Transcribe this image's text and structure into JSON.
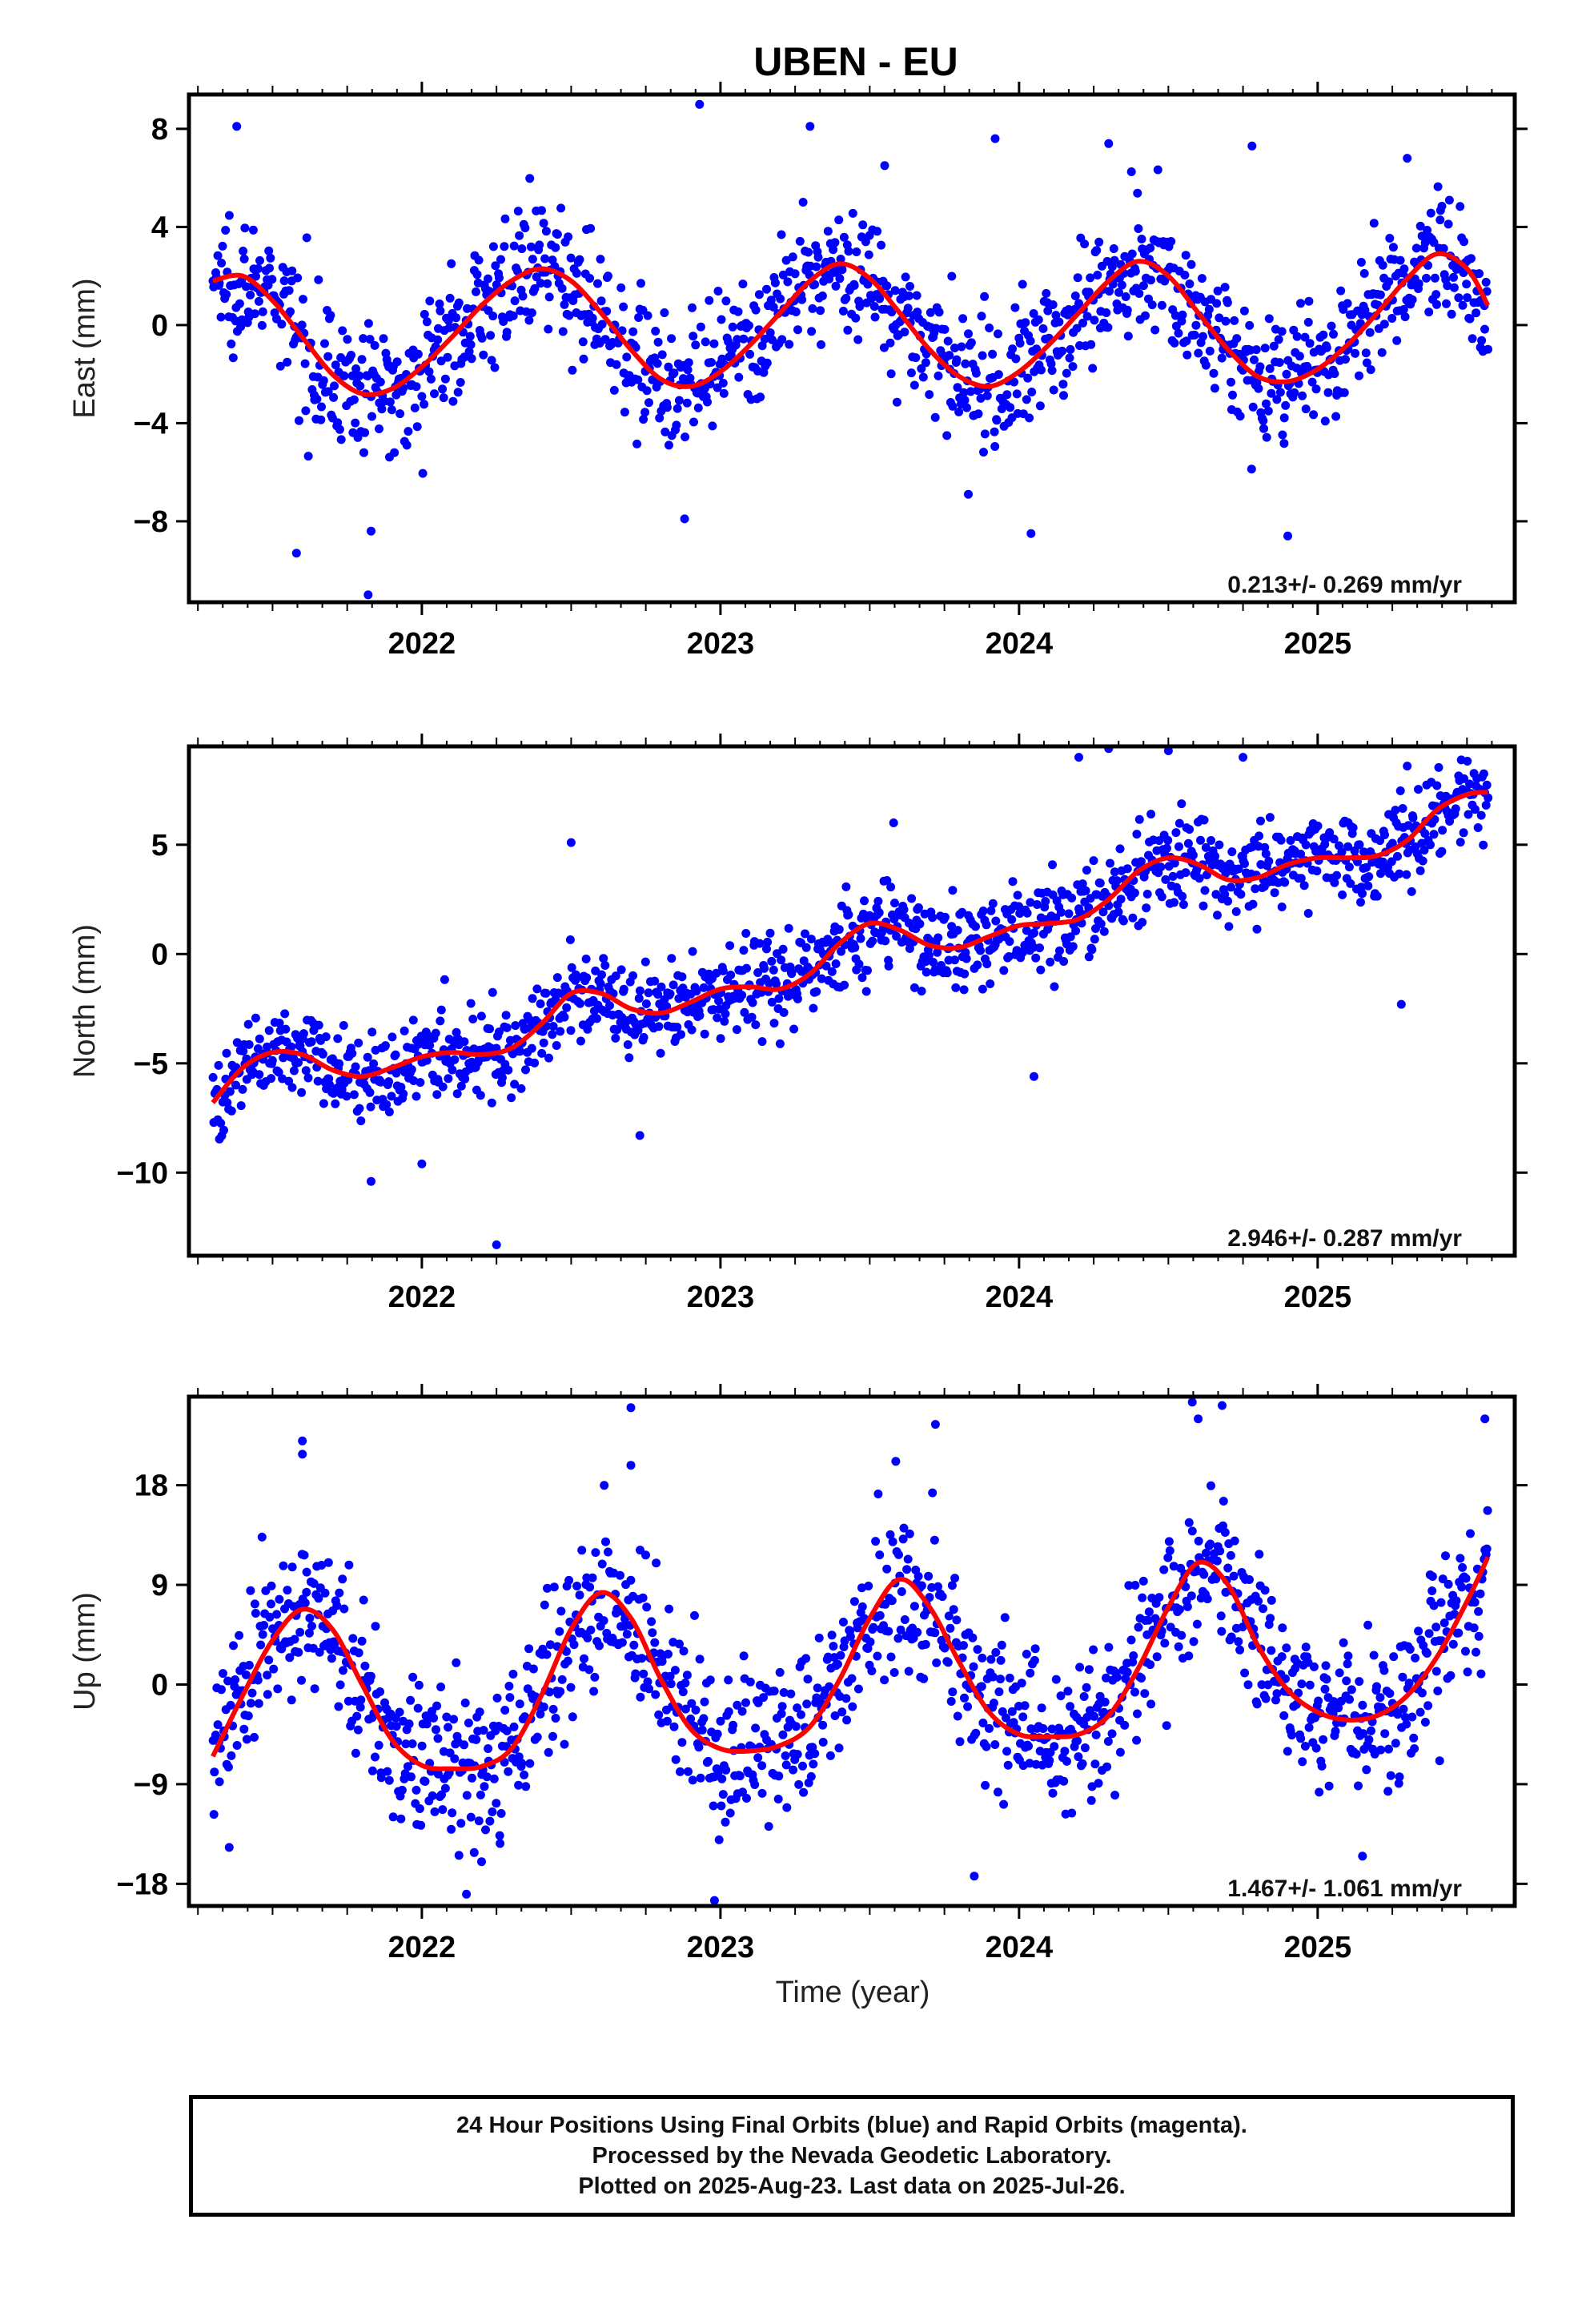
{
  "title": "UBEN - EU",
  "xlabel": "Time (year)",
  "footer": {
    "lines": [
      "24 Hour Positions Using Final Orbits (blue) and Rapid Orbits (magenta).",
      "Processed by the Nevada Geodetic Laboratory.",
      "Plotted on 2025-Aug-23. Last data on 2025-Jul-26."
    ]
  },
  "colors": {
    "points": "#0000ff",
    "fit": "#ff0000",
    "frame": "#000000"
  },
  "chart_data": [
    {
      "type": "scatter",
      "component": "east",
      "ylabel": "East (mm)",
      "rate": "0.213+/- 0.269 mm/yr",
      "xlim": [
        2021.22,
        2025.66
      ],
      "ylim": [
        -11.3,
        9.4
      ],
      "xticks": [
        2022,
        2023,
        2024,
        2025
      ],
      "xtick_labels": [
        "2022",
        "2023",
        "2024",
        "2025"
      ],
      "yticks": [
        8,
        4,
        0,
        -4,
        -8
      ],
      "ytick_labels": [
        "8",
        "4",
        "0",
        "−4",
        "−8"
      ],
      "fit": [
        [
          2021.3,
          1.8
        ],
        [
          2021.4,
          2.0
        ],
        [
          2021.5,
          1.0
        ],
        [
          2021.6,
          -0.5
        ],
        [
          2021.7,
          -2.0
        ],
        [
          2021.8,
          -2.8
        ],
        [
          2021.9,
          -2.6
        ],
        [
          2022.0,
          -1.7
        ],
        [
          2022.1,
          -0.5
        ],
        [
          2022.2,
          0.8
        ],
        [
          2022.3,
          1.8
        ],
        [
          2022.4,
          2.3
        ],
        [
          2022.5,
          1.8
        ],
        [
          2022.6,
          0.5
        ],
        [
          2022.7,
          -1.0
        ],
        [
          2022.8,
          -2.2
        ],
        [
          2022.9,
          -2.5
        ],
        [
          2023.0,
          -1.9
        ],
        [
          2023.1,
          -0.8
        ],
        [
          2023.2,
          0.5
        ],
        [
          2023.3,
          1.8
        ],
        [
          2023.4,
          2.5
        ],
        [
          2023.5,
          1.9
        ],
        [
          2023.6,
          0.5
        ],
        [
          2023.7,
          -1.0
        ],
        [
          2023.8,
          -2.1
        ],
        [
          2023.9,
          -2.5
        ],
        [
          2024.0,
          -1.9
        ],
        [
          2024.1,
          -0.8
        ],
        [
          2024.2,
          0.5
        ],
        [
          2024.3,
          1.8
        ],
        [
          2024.4,
          2.6
        ],
        [
          2024.5,
          2.0
        ],
        [
          2024.6,
          0.5
        ],
        [
          2024.7,
          -1.0
        ],
        [
          2024.8,
          -2.1
        ],
        [
          2024.9,
          -2.3
        ],
        [
          2025.0,
          -1.8
        ],
        [
          2025.1,
          -0.8
        ],
        [
          2025.2,
          0.5
        ],
        [
          2025.3,
          1.9
        ],
        [
          2025.4,
          2.9
        ],
        [
          2025.5,
          2.3
        ],
        [
          2025.57,
          0.8
        ]
      ],
      "scatter": {
        "range": [
          2021.3,
          2025.57
        ],
        "count": 1300,
        "spread": 1.3
      },
      "outliers": [
        [
          2021.38,
          8.1
        ],
        [
          2021.82,
          -11.0
        ],
        [
          2021.83,
          -8.4
        ],
        [
          2021.58,
          -9.3
        ],
        [
          2022.93,
          9.0
        ],
        [
          2022.88,
          -7.9
        ],
        [
          2023.3,
          8.1
        ],
        [
          2023.55,
          6.5
        ],
        [
          2023.92,
          7.6
        ],
        [
          2024.3,
          7.4
        ],
        [
          2024.78,
          7.3
        ],
        [
          2024.9,
          -8.6
        ],
        [
          2025.3,
          6.8
        ],
        [
          2024.04,
          -8.5
        ],
        [
          2023.83,
          -6.9
        ]
      ]
    },
    {
      "type": "scatter",
      "component": "north",
      "ylabel": "North (mm)",
      "rate": "2.946+/- 0.287 mm/yr",
      "xlim": [
        2021.22,
        2025.66
      ],
      "ylim": [
        -13.8,
        9.5
      ],
      "xticks": [
        2022,
        2023,
        2024,
        2025
      ],
      "xtick_labels": [
        "2022",
        "2023",
        "2024",
        "2025"
      ],
      "yticks": [
        5,
        0,
        -5,
        -10
      ],
      "ytick_labels": [
        "5",
        "0",
        "−5",
        "−10"
      ],
      "fit": [
        [
          2021.3,
          -6.8
        ],
        [
          2021.4,
          -5.2
        ],
        [
          2021.5,
          -4.5
        ],
        [
          2021.6,
          -4.6
        ],
        [
          2021.7,
          -5.3
        ],
        [
          2021.8,
          -5.6
        ],
        [
          2021.9,
          -5.2
        ],
        [
          2022.0,
          -4.7
        ],
        [
          2022.1,
          -4.5
        ],
        [
          2022.2,
          -4.6
        ],
        [
          2022.3,
          -4.3
        ],
        [
          2022.4,
          -3.2
        ],
        [
          2022.5,
          -1.8
        ],
        [
          2022.6,
          -1.8
        ],
        [
          2022.7,
          -2.5
        ],
        [
          2022.8,
          -2.7
        ],
        [
          2022.9,
          -2.2
        ],
        [
          2023.0,
          -1.6
        ],
        [
          2023.1,
          -1.5
        ],
        [
          2023.2,
          -1.6
        ],
        [
          2023.3,
          -0.9
        ],
        [
          2023.4,
          0.5
        ],
        [
          2023.5,
          1.4
        ],
        [
          2023.6,
          1.1
        ],
        [
          2023.7,
          0.4
        ],
        [
          2023.8,
          0.3
        ],
        [
          2023.9,
          0.8
        ],
        [
          2024.0,
          1.3
        ],
        [
          2024.1,
          1.4
        ],
        [
          2024.2,
          1.6
        ],
        [
          2024.3,
          2.5
        ],
        [
          2024.4,
          3.8
        ],
        [
          2024.5,
          4.4
        ],
        [
          2024.6,
          4.1
        ],
        [
          2024.7,
          3.4
        ],
        [
          2024.8,
          3.5
        ],
        [
          2024.9,
          4.1
        ],
        [
          2025.0,
          4.4
        ],
        [
          2025.1,
          4.4
        ],
        [
          2025.2,
          4.5
        ],
        [
          2025.3,
          5.2
        ],
        [
          2025.4,
          6.6
        ],
        [
          2025.5,
          7.3
        ],
        [
          2025.57,
          7.4
        ]
      ],
      "scatter": {
        "range": [
          2021.3,
          2025.57
        ],
        "count": 1300,
        "spread": 1.0
      },
      "outliers": [
        [
          2022.25,
          -13.3
        ],
        [
          2022.5,
          5.1
        ],
        [
          2021.83,
          -10.4
        ],
        [
          2022.0,
          -9.6
        ],
        [
          2022.73,
          -8.3
        ],
        [
          2023.58,
          6.0
        ],
        [
          2024.2,
          9.0
        ],
        [
          2024.3,
          9.4
        ],
        [
          2024.5,
          9.3
        ],
        [
          2024.75,
          9.0
        ],
        [
          2025.3,
          8.6
        ],
        [
          2024.05,
          -5.6
        ],
        [
          2025.28,
          -2.3
        ]
      ]
    },
    {
      "type": "scatter",
      "component": "up",
      "ylabel": "Up (mm)",
      "rate": "1.467+/- 1.061 mm/yr",
      "xlim": [
        2021.22,
        2025.66
      ],
      "ylim": [
        -20.0,
        26.0
      ],
      "xticks": [
        2022,
        2023,
        2024,
        2025
      ],
      "xtick_labels": [
        "2022",
        "2023",
        "2024",
        "2025"
      ],
      "yticks": [
        18,
        9,
        0,
        -9,
        -18
      ],
      "ytick_labels": [
        "18",
        "9",
        "0",
        "−9",
        "−18"
      ],
      "fit": [
        [
          2021.3,
          -6.5
        ],
        [
          2021.4,
          -1.0
        ],
        [
          2021.5,
          4.0
        ],
        [
          2021.6,
          6.8
        ],
        [
          2021.7,
          5.0
        ],
        [
          2021.8,
          0.0
        ],
        [
          2021.9,
          -5.0
        ],
        [
          2022.0,
          -7.3
        ],
        [
          2022.1,
          -7.6
        ],
        [
          2022.2,
          -7.4
        ],
        [
          2022.3,
          -5.8
        ],
        [
          2022.4,
          -1.0
        ],
        [
          2022.5,
          5.0
        ],
        [
          2022.6,
          8.3
        ],
        [
          2022.7,
          6.0
        ],
        [
          2022.8,
          0.5
        ],
        [
          2022.9,
          -4.0
        ],
        [
          2023.0,
          -5.8
        ],
        [
          2023.1,
          -6.0
        ],
        [
          2023.2,
          -5.5
        ],
        [
          2023.3,
          -3.8
        ],
        [
          2023.4,
          0.5
        ],
        [
          2023.5,
          6.0
        ],
        [
          2023.6,
          9.5
        ],
        [
          2023.7,
          7.0
        ],
        [
          2023.8,
          2.0
        ],
        [
          2023.9,
          -2.5
        ],
        [
          2024.0,
          -4.5
        ],
        [
          2024.1,
          -4.7
        ],
        [
          2024.2,
          -4.5
        ],
        [
          2024.3,
          -2.8
        ],
        [
          2024.4,
          1.5
        ],
        [
          2024.5,
          7.0
        ],
        [
          2024.6,
          11.0
        ],
        [
          2024.7,
          9.0
        ],
        [
          2024.8,
          3.5
        ],
        [
          2024.9,
          -0.5
        ],
        [
          2025.0,
          -2.5
        ],
        [
          2025.1,
          -3.2
        ],
        [
          2025.2,
          -2.8
        ],
        [
          2025.3,
          -1.0
        ],
        [
          2025.4,
          2.5
        ],
        [
          2025.5,
          7.5
        ],
        [
          2025.57,
          11.5
        ]
      ],
      "scatter": {
        "range": [
          2021.3,
          2025.57
        ],
        "count": 1300,
        "spread": 3.6
      },
      "outliers": [
        [
          2021.6,
          22.0
        ],
        [
          2021.6,
          20.8
        ],
        [
          2022.7,
          25.0
        ],
        [
          2022.7,
          19.8
        ],
        [
          2023.72,
          23.5
        ],
        [
          2024.58,
          25.5
        ],
        [
          2024.6,
          24.0
        ],
        [
          2024.68,
          25.2
        ],
        [
          2025.56,
          24.0
        ],
        [
          2022.98,
          -19.5
        ],
        [
          2025.15,
          -15.5
        ],
        [
          2023.85,
          -17.3
        ],
        [
          2022.2,
          -16.0
        ]
      ]
    }
  ]
}
